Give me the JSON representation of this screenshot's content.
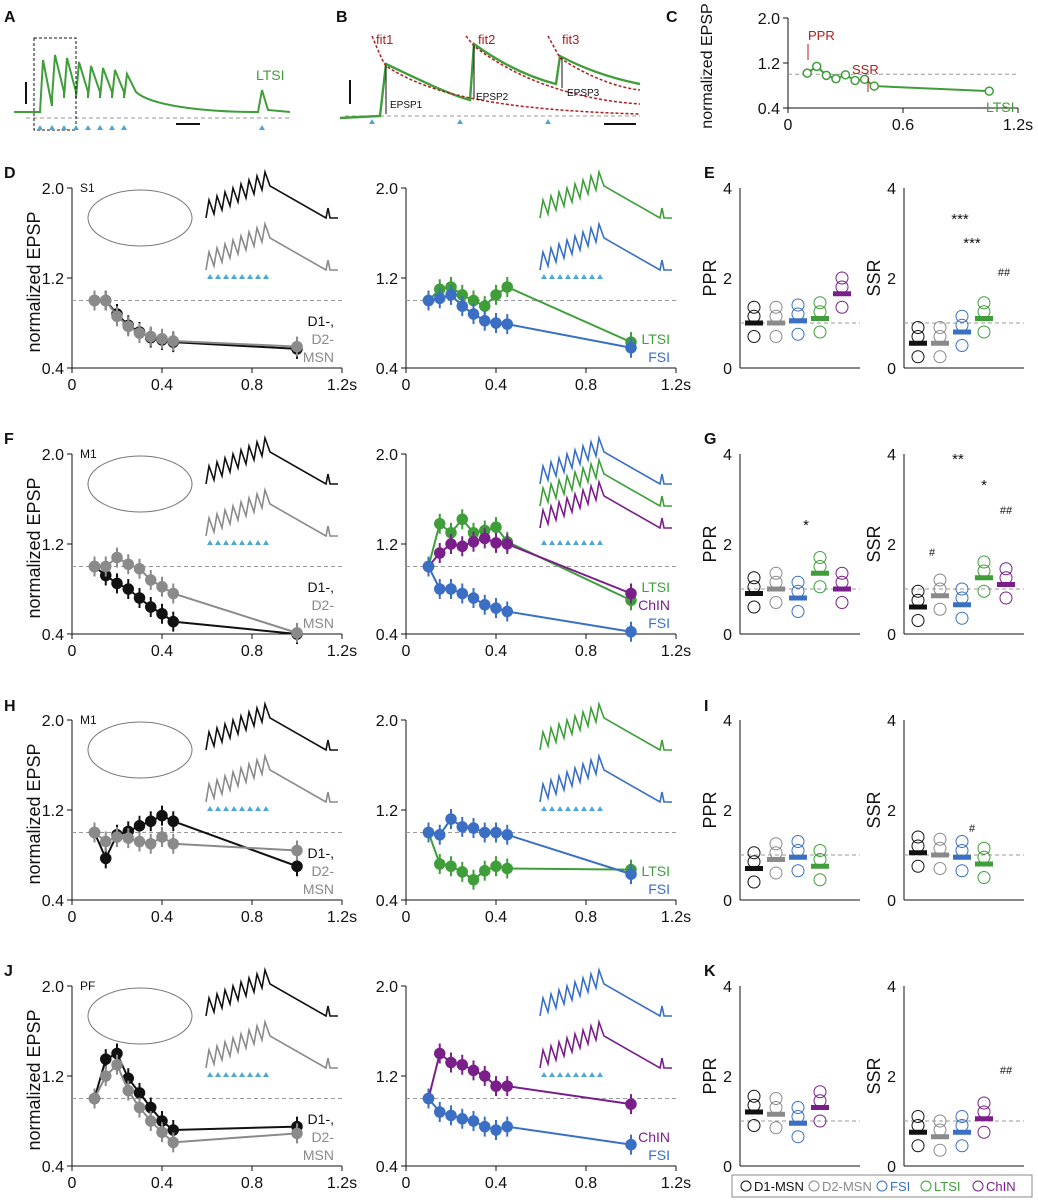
{
  "colors": {
    "D1": "#111111",
    "D2": "#8a8a8a",
    "FSI": "#3a6fc4",
    "LTSI": "#3f9e3a",
    "ChIN": "#7a1f8a",
    "fit": "#b01e1e",
    "stim": "#4ea6d8",
    "dash": "#9a9a9a"
  },
  "panel_letters": [
    "A",
    "B",
    "C",
    "D",
    "E",
    "F",
    "G",
    "H",
    "I",
    "J",
    "K"
  ],
  "axis_common": {
    "ylabel": "normalized EPSP",
    "x_ticks": [
      "0",
      "0.4",
      "0.8",
      "1.2s"
    ],
    "y_ticks": [
      "0.4",
      "1.2",
      "2.0"
    ],
    "c_x_ticks": [
      "0",
      "0.6",
      "1.2s"
    ],
    "bar_y_ticks": [
      "0",
      "2",
      "4"
    ]
  },
  "panel_a": {
    "label": "LTSI"
  },
  "panel_b": {
    "fits": [
      "fit1",
      "fit2",
      "fit3"
    ],
    "epsps": [
      "EPSP1",
      "EPSP2",
      "EPSP3"
    ]
  },
  "panel_c": {
    "ppr_label": "PPR",
    "ssr_label": "SSR",
    "series_label": "LTSI"
  },
  "row_labels": {
    "D": {
      "region": "S1",
      "left": [
        "D1-,",
        "D2-",
        "MSN"
      ],
      "right": [
        "LTSI",
        "FSI"
      ]
    },
    "F": {
      "region": "M1",
      "left": [
        "D1-,",
        "D2-",
        "MSN"
      ],
      "right": [
        "LTSI",
        "ChIN",
        "FSI"
      ]
    },
    "H": {
      "region": "M1",
      "left": [
        "D1-,",
        "D2-",
        "MSN"
      ],
      "right": [
        "LTSI",
        "FSI"
      ]
    },
    "J": {
      "region": "PF",
      "left": [
        "D1-,",
        "D2-",
        "MSN"
      ],
      "right": [
        "ChIN",
        "FSI"
      ]
    }
  },
  "bar_labels": {
    "ppr": "PPR",
    "ssr": "SSR"
  },
  "significance": {
    "E_ssr": [
      "***",
      "***",
      "##"
    ],
    "G_ppr": [
      "*"
    ],
    "G_ssr": [
      "**",
      "#",
      "*",
      "##"
    ],
    "I_ssr": [
      "#"
    ],
    "K_ssr": [
      "##"
    ]
  },
  "legend": [
    {
      "label": "D1-MSN",
      "color": "#111111"
    },
    {
      "label": "D2-MSN",
      "color": "#8a8a8a"
    },
    {
      "label": "FSI",
      "color": "#3a6fc4"
    },
    {
      "label": "LTSI",
      "color": "#3f9e3a"
    },
    {
      "label": "ChIN",
      "color": "#7a1f8a"
    }
  ],
  "chart_data": [
    {
      "id": "C",
      "type": "line",
      "title": "",
      "xlabel": "",
      "ylabel": "normalized EPSP",
      "xlim": [
        0,
        1.2
      ],
      "ylim": [
        0.4,
        2.0
      ],
      "series": [
        {
          "name": "LTSI",
          "x": [
            0.1,
            0.15,
            0.2,
            0.25,
            0.3,
            0.35,
            0.4,
            0.45,
            1.05
          ],
          "y": [
            1.02,
            1.14,
            0.98,
            0.92,
            0.99,
            0.89,
            0.91,
            0.79,
            0.7
          ]
        }
      ]
    },
    {
      "id": "D-left",
      "type": "line",
      "region": "S1",
      "xlim": [
        0,
        1.2
      ],
      "ylim": [
        0.4,
        2.0
      ],
      "series": [
        {
          "name": "D1-MSN",
          "x": [
            0.1,
            0.15,
            0.2,
            0.25,
            0.3,
            0.35,
            0.4,
            0.45,
            1.0
          ],
          "y": [
            1.0,
            1.0,
            0.88,
            0.78,
            0.72,
            0.67,
            0.65,
            0.63,
            0.57
          ]
        },
        {
          "name": "D2-MSN",
          "x": [
            0.1,
            0.15,
            0.2,
            0.25,
            0.3,
            0.35,
            0.4,
            0.45,
            1.0
          ],
          "y": [
            1.0,
            1.0,
            0.86,
            0.77,
            0.71,
            0.68,
            0.66,
            0.64,
            0.59
          ]
        }
      ]
    },
    {
      "id": "D-right",
      "type": "line",
      "region": "S1",
      "xlim": [
        0,
        1.2
      ],
      "ylim": [
        0.4,
        2.0
      ],
      "series": [
        {
          "name": "LTSI",
          "x": [
            0.1,
            0.15,
            0.2,
            0.25,
            0.3,
            0.35,
            0.4,
            0.45,
            1.0
          ],
          "y": [
            1.0,
            1.1,
            1.12,
            1.05,
            1.0,
            0.95,
            1.05,
            1.12,
            0.63
          ]
        },
        {
          "name": "FSI",
          "x": [
            0.1,
            0.15,
            0.2,
            0.25,
            0.3,
            0.35,
            0.4,
            0.45,
            1.0
          ],
          "y": [
            1.0,
            1.02,
            1.05,
            0.95,
            0.88,
            0.82,
            0.8,
            0.79,
            0.58
          ]
        }
      ]
    },
    {
      "id": "E",
      "type": "scatter",
      "metrics": [
        "PPR",
        "SSR"
      ],
      "ylim": [
        0,
        4
      ],
      "groups": [
        "D1-MSN",
        "D2-MSN",
        "FSI",
        "LTSI",
        "ChIN"
      ],
      "PPR_means": [
        1.0,
        1.0,
        1.05,
        1.1,
        1.65
      ],
      "SSR_means": [
        0.55,
        0.55,
        0.8,
        1.1,
        null
      ]
    },
    {
      "id": "F-left",
      "type": "line",
      "region": "M1",
      "xlim": [
        0,
        1.2
      ],
      "ylim": [
        0.4,
        2.0
      ],
      "series": [
        {
          "name": "D1-MSN",
          "x": [
            0.1,
            0.15,
            0.2,
            0.25,
            0.3,
            0.35,
            0.4,
            0.45,
            1.0
          ],
          "y": [
            1.0,
            0.92,
            0.85,
            0.8,
            0.72,
            0.64,
            0.58,
            0.51,
            0.4
          ]
        },
        {
          "name": "D2-MSN",
          "x": [
            0.1,
            0.15,
            0.2,
            0.25,
            0.3,
            0.35,
            0.4,
            0.45,
            1.0
          ],
          "y": [
            1.0,
            1.0,
            1.08,
            1.02,
            0.98,
            0.88,
            0.82,
            0.76,
            0.41
          ]
        }
      ]
    },
    {
      "id": "F-right",
      "type": "line",
      "region": "M1",
      "xlim": [
        0,
        1.2
      ],
      "ylim": [
        0.4,
        2.0
      ],
      "series": [
        {
          "name": "LTSI",
          "x": [
            0.1,
            0.15,
            0.2,
            0.25,
            0.3,
            0.35,
            0.4,
            0.45,
            1.0
          ],
          "y": [
            1.0,
            1.38,
            1.3,
            1.42,
            1.3,
            1.32,
            1.35,
            1.22,
            0.7
          ]
        },
        {
          "name": "ChIN",
          "x": [
            0.1,
            0.15,
            0.2,
            0.25,
            0.3,
            0.35,
            0.4,
            0.45,
            1.0
          ],
          "y": [
            1.0,
            1.12,
            1.2,
            1.18,
            1.22,
            1.25,
            1.21,
            1.2,
            0.76
          ]
        },
        {
          "name": "FSI",
          "x": [
            0.1,
            0.15,
            0.2,
            0.25,
            0.3,
            0.35,
            0.4,
            0.45,
            1.0
          ],
          "y": [
            1.0,
            0.8,
            0.8,
            0.76,
            0.72,
            0.66,
            0.63,
            0.6,
            0.42
          ]
        }
      ]
    },
    {
      "id": "G",
      "type": "scatter",
      "metrics": [
        "PPR",
        "SSR"
      ],
      "ylim": [
        0,
        4
      ],
      "groups": [
        "D1-MSN",
        "D2-MSN",
        "FSI",
        "LTSI",
        "ChIN"
      ],
      "PPR_means": [
        0.9,
        1.0,
        0.8,
        1.35,
        1.0
      ],
      "SSR_means": [
        0.6,
        0.85,
        0.65,
        1.25,
        1.1
      ]
    },
    {
      "id": "H-left",
      "type": "line",
      "region": "M1",
      "xlim": [
        0,
        1.2
      ],
      "ylim": [
        0.4,
        2.0
      ],
      "series": [
        {
          "name": "D1-MSN",
          "x": [
            0.1,
            0.15,
            0.2,
            0.25,
            0.3,
            0.35,
            0.4,
            0.45,
            1.0
          ],
          "y": [
            1.0,
            0.77,
            0.98,
            1.01,
            1.06,
            1.1,
            1.15,
            1.1,
            0.7
          ]
        },
        {
          "name": "D2-MSN",
          "x": [
            0.1,
            0.15,
            0.2,
            0.25,
            0.3,
            0.35,
            0.4,
            0.45,
            1.0
          ],
          "y": [
            1.0,
            0.92,
            0.96,
            0.95,
            0.92,
            0.9,
            0.96,
            0.9,
            0.84
          ]
        }
      ]
    },
    {
      "id": "H-right",
      "type": "line",
      "region": "M1",
      "xlim": [
        0,
        1.2
      ],
      "ylim": [
        0.4,
        2.0
      ],
      "series": [
        {
          "name": "LTSI",
          "x": [
            0.1,
            0.15,
            0.2,
            0.25,
            0.3,
            0.35,
            0.4,
            0.45,
            1.0
          ],
          "y": [
            1.0,
            0.72,
            0.7,
            0.65,
            0.58,
            0.66,
            0.7,
            0.68,
            0.67
          ]
        },
        {
          "name": "FSI",
          "x": [
            0.1,
            0.15,
            0.2,
            0.25,
            0.3,
            0.35,
            0.4,
            0.45,
            1.0
          ],
          "y": [
            1.0,
            0.98,
            1.12,
            1.05,
            1.04,
            1.0,
            1.0,
            0.98,
            0.63
          ]
        }
      ]
    },
    {
      "id": "I",
      "type": "scatter",
      "metrics": [
        "PPR",
        "SSR"
      ],
      "ylim": [
        0,
        4
      ],
      "groups": [
        "D1-MSN",
        "D2-MSN",
        "FSI",
        "LTSI"
      ],
      "PPR_means": [
        0.7,
        0.9,
        0.95,
        0.75
      ],
      "SSR_means": [
        1.05,
        1.0,
        0.95,
        0.8
      ]
    },
    {
      "id": "J-left",
      "type": "line",
      "region": "PF",
      "xlim": [
        0,
        1.2
      ],
      "ylim": [
        0.4,
        2.0
      ],
      "series": [
        {
          "name": "D1-MSN",
          "x": [
            0.1,
            0.15,
            0.2,
            0.25,
            0.3,
            0.35,
            0.4,
            0.45,
            1.0
          ],
          "y": [
            1.0,
            1.35,
            1.4,
            1.18,
            1.05,
            0.92,
            0.8,
            0.72,
            0.75
          ]
        },
        {
          "name": "D2-MSN",
          "x": [
            0.1,
            0.15,
            0.2,
            0.25,
            0.3,
            0.35,
            0.4,
            0.45,
            1.0
          ],
          "y": [
            1.0,
            1.2,
            1.3,
            1.07,
            0.92,
            0.8,
            0.7,
            0.61,
            0.69
          ]
        }
      ]
    },
    {
      "id": "J-right",
      "type": "line",
      "region": "PF",
      "xlim": [
        0,
        1.2
      ],
      "ylim": [
        0.4,
        2.0
      ],
      "series": [
        {
          "name": "ChIN",
          "x": [
            0.1,
            0.15,
            0.2,
            0.25,
            0.3,
            0.35,
            0.4,
            0.45,
            1.0
          ],
          "y": [
            1.0,
            1.4,
            1.32,
            1.3,
            1.25,
            1.2,
            1.11,
            1.11,
            0.95
          ]
        },
        {
          "name": "FSI",
          "x": [
            0.1,
            0.15,
            0.2,
            0.25,
            0.3,
            0.35,
            0.4,
            0.45,
            1.0
          ],
          "y": [
            1.0,
            0.88,
            0.85,
            0.82,
            0.8,
            0.75,
            0.72,
            0.75,
            0.59
          ]
        }
      ]
    },
    {
      "id": "K",
      "type": "scatter",
      "metrics": [
        "PPR",
        "SSR"
      ],
      "ylim": [
        0,
        4
      ],
      "groups": [
        "D1-MSN",
        "D2-MSN",
        "FSI",
        "ChIN"
      ],
      "PPR_means": [
        1.2,
        1.15,
        0.95,
        1.3
      ],
      "SSR_means": [
        0.75,
        0.65,
        0.75,
        1.05
      ]
    }
  ]
}
